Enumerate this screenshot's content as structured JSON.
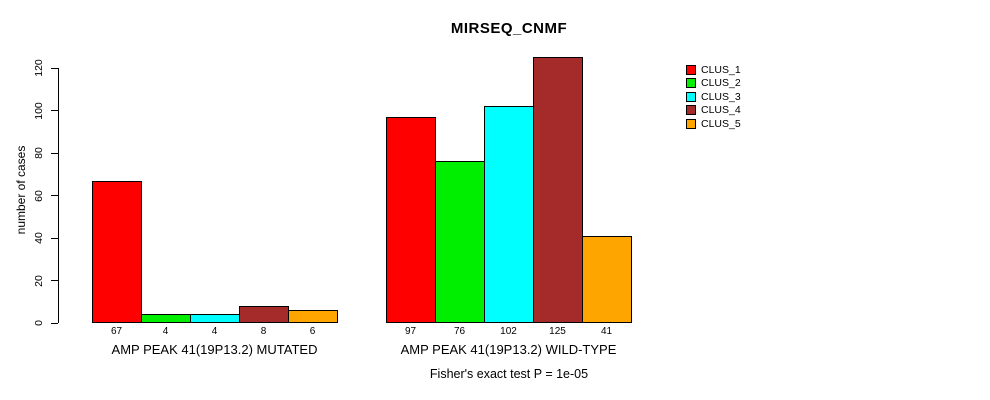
{
  "title": "MIRSEQ_CNMF",
  "legend": {
    "position": "top-right-outside",
    "items": [
      {
        "label": "CLUS_1",
        "color": "#FF0000"
      },
      {
        "label": "CLUS_2",
        "color": "#00EE00"
      },
      {
        "label": "CLUS_3",
        "color": "#00FFFF"
      },
      {
        "label": "CLUS_4",
        "color": "#A52A2A"
      },
      {
        "label": "CLUS_5",
        "color": "#FFA500"
      }
    ]
  },
  "chart_data": {
    "type": "bar",
    "title": "MIRSEQ_CNMF",
    "xlabel": "",
    "ylabel": "number of cases",
    "ylim": [
      0,
      130
    ],
    "yticks": [
      0,
      20,
      40,
      60,
      80,
      100,
      120
    ],
    "grid": false,
    "series_labels": [
      "CLUS_1",
      "CLUS_2",
      "CLUS_3",
      "CLUS_4",
      "CLUS_5"
    ],
    "colors": [
      "#FF0000",
      "#00EE00",
      "#00FFFF",
      "#A52A2A",
      "#FFA500"
    ],
    "groups": [
      {
        "label": "AMP PEAK 41(19P13.2) MUTATED",
        "values": [
          67,
          4,
          4,
          8,
          6
        ]
      },
      {
        "label": "AMP PEAK 41(19P13.2) WILD-TYPE",
        "values": [
          97,
          76,
          102,
          125,
          41
        ]
      }
    ],
    "annotation": "Fisher's exact test P = 1e-05"
  }
}
